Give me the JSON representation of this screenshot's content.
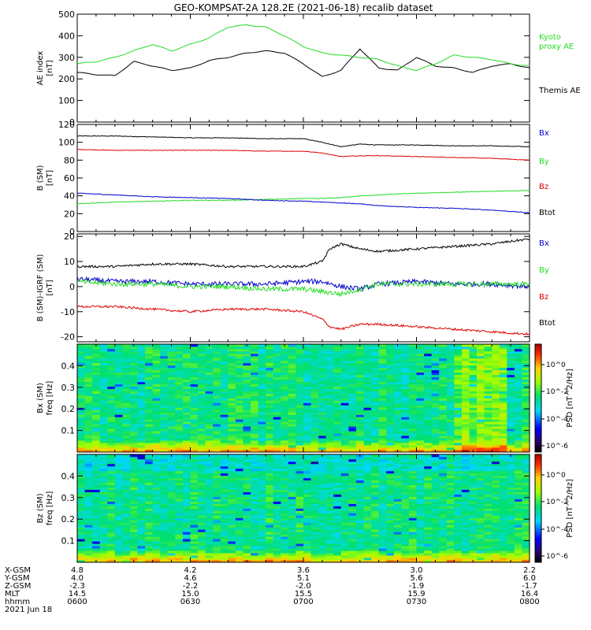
{
  "title": "GEO-KOMPSAT-2A 128.2E (2021-06-18) recalib dataset",
  "colors": {
    "black": "#000000",
    "green": "#22dd22",
    "red": "#dd0000",
    "blue": "#0000cc"
  },
  "chart_data": [
    {
      "type": "line",
      "ylabel_lines": [
        "AE index",
        "[nT]"
      ],
      "ylim": [
        0,
        500
      ],
      "yticks": [
        0,
        100,
        200,
        300,
        400,
        500
      ],
      "x_range_minutes": [
        0,
        120
      ],
      "series": [
        {
          "name": "Themis AE",
          "color": "#000000",
          "x": [
            0,
            5,
            10,
            15,
            20,
            25,
            30,
            35,
            40,
            45,
            50,
            55,
            60,
            65,
            70,
            75,
            80,
            85,
            90,
            95,
            100,
            105,
            110,
            115,
            120
          ],
          "values": [
            230,
            220,
            215,
            280,
            260,
            240,
            250,
            285,
            300,
            320,
            330,
            320,
            270,
            210,
            240,
            340,
            250,
            240,
            300,
            260,
            250,
            230,
            260,
            270,
            250
          ]
        },
        {
          "name": "Kyoto proxy AE",
          "color": "#22dd22",
          "x": [
            0,
            5,
            10,
            15,
            20,
            25,
            30,
            35,
            40,
            45,
            50,
            55,
            60,
            65,
            70,
            75,
            80,
            85,
            90,
            95,
            100,
            105,
            110,
            115,
            120
          ],
          "values": [
            270,
            280,
            300,
            330,
            360,
            330,
            360,
            390,
            440,
            450,
            440,
            400,
            350,
            320,
            310,
            300,
            290,
            260,
            240,
            270,
            310,
            300,
            290,
            270,
            260
          ]
        }
      ],
      "legend": [
        "Kyoto",
        "proxy AE",
        "Themis AE"
      ]
    },
    {
      "type": "line",
      "ylabel_lines": [
        "B (SM)",
        "[nT]"
      ],
      "ylim": [
        0,
        120
      ],
      "yticks": [
        0,
        20,
        40,
        60,
        80,
        100,
        120
      ],
      "x_range_minutes": [
        0,
        120
      ],
      "series": [
        {
          "name": "Btot",
          "color": "#000000",
          "x": [
            0,
            10,
            20,
            30,
            40,
            50,
            60,
            65,
            70,
            75,
            80,
            90,
            100,
            110,
            120
          ],
          "values": [
            107,
            107,
            106,
            105,
            105,
            104,
            104,
            100,
            95,
            98,
            97,
            97,
            96,
            96,
            95
          ]
        },
        {
          "name": "Bx",
          "color": "#dd0000",
          "x": [
            0,
            10,
            20,
            30,
            40,
            50,
            60,
            65,
            70,
            75,
            80,
            90,
            100,
            110,
            120
          ],
          "values": [
            92,
            91,
            91,
            91,
            91,
            90,
            90,
            88,
            84,
            85,
            85,
            84,
            83,
            82,
            80
          ]
        },
        {
          "name": "By",
          "color": "#22dd22",
          "x": [
            0,
            10,
            20,
            30,
            40,
            50,
            60,
            65,
            70,
            75,
            80,
            90,
            100,
            110,
            120
          ],
          "values": [
            31,
            33,
            34,
            35,
            35,
            36,
            37,
            37,
            38,
            40,
            41,
            43,
            44,
            45,
            46
          ]
        },
        {
          "name": "Bz",
          "color": "#0000cc",
          "x": [
            0,
            10,
            20,
            30,
            40,
            50,
            60,
            65,
            70,
            75,
            80,
            90,
            100,
            110,
            120
          ],
          "values": [
            43,
            41,
            39,
            38,
            37,
            35,
            34,
            33,
            32,
            31,
            29,
            27,
            26,
            24,
            21
          ]
        }
      ],
      "legend": [
        "Bx",
        "By",
        "Bz",
        "Btot"
      ]
    },
    {
      "type": "line",
      "ylabel_lines": [
        "B (SM)-IGRF (SM)",
        "[nT]"
      ],
      "ylim": [
        -22,
        21
      ],
      "yticks": [
        -20,
        -10,
        0,
        10,
        20
      ],
      "x_range_minutes": [
        0,
        120
      ],
      "series": [
        {
          "name": "Btot",
          "color": "#000000",
          "x": [
            0,
            10,
            20,
            30,
            40,
            50,
            60,
            65,
            67,
            70,
            75,
            80,
            90,
            100,
            110,
            120
          ],
          "values": [
            8,
            8,
            9,
            9,
            8,
            8,
            8,
            10,
            15,
            17,
            15,
            14,
            15,
            16,
            17,
            19
          ]
        },
        {
          "name": "Bz",
          "color": "#0000cc",
          "x": [
            0,
            10,
            20,
            30,
            40,
            50,
            60,
            65,
            70,
            75,
            80,
            90,
            100,
            110,
            120
          ],
          "values": [
            3,
            2,
            2,
            1,
            1,
            1,
            2,
            2,
            0,
            -1,
            1,
            2,
            1,
            1,
            0
          ]
        },
        {
          "name": "By",
          "color": "#22dd22",
          "x": [
            0,
            10,
            20,
            30,
            40,
            50,
            60,
            65,
            70,
            75,
            80,
            90,
            100,
            110,
            120
          ],
          "values": [
            2,
            1,
            1,
            0,
            0,
            -1,
            -1,
            -2,
            -3,
            -1,
            1,
            1,
            1,
            1,
            1
          ]
        },
        {
          "name": "Bx",
          "color": "#dd0000",
          "x": [
            0,
            10,
            20,
            30,
            40,
            50,
            60,
            65,
            67,
            70,
            75,
            80,
            90,
            100,
            110,
            120
          ],
          "values": [
            -8,
            -8,
            -9,
            -10,
            -9,
            -9,
            -10,
            -13,
            -16,
            -17,
            -15,
            -15,
            -16,
            -17,
            -18,
            -19
          ]
        }
      ],
      "legend": [
        "Bx",
        "By",
        "Bz",
        "Btot"
      ]
    },
    {
      "type": "heatmap",
      "ylabel_lines": [
        "Bx (SM)",
        "freq [Hz]"
      ],
      "ylim": [
        0,
        0.5
      ],
      "yticks": [
        0.1,
        0.2,
        0.3,
        0.4
      ],
      "colorbar": {
        "label": "PSD [nT^2/Hz]",
        "ticks": [
          "10^0",
          "10^-2",
          "10^-4",
          "10^-6"
        ]
      },
      "note": "broadband PSD, elevated below ~0.06 Hz and after 07:50"
    },
    {
      "type": "heatmap",
      "ylabel_lines": [
        "Bz (SM)",
        "freq [Hz]"
      ],
      "ylim": [
        0,
        0.5
      ],
      "yticks": [
        0.1,
        0.2,
        0.3,
        0.4
      ],
      "colorbar": {
        "label": "PSD [nT^2/Hz]",
        "ticks": [
          "10^0",
          "10^-2",
          "10^-4",
          "10^-6"
        ]
      },
      "note": "broadband PSD, elevated below ~0.06 Hz"
    }
  ],
  "ephemeris": {
    "labels": [
      "X-GSM",
      "Y-GSM",
      "Z-GSM",
      "MLT",
      "hhmm"
    ],
    "date": "2021 Jun 18",
    "columns": [
      [
        "4.8",
        "4.0",
        "-2.3",
        "14.5",
        "0600"
      ],
      [
        "4.2",
        "4.6",
        "-2.2",
        "15.0",
        "0630"
      ],
      [
        "3.6",
        "5.1",
        "-2.0",
        "15.5",
        "0700"
      ],
      [
        "3.0",
        "5.6",
        "-1.9",
        "15.9",
        "0730"
      ],
      [
        "2.2",
        "6.0",
        "-1.7",
        "16.4",
        "0800"
      ]
    ]
  }
}
